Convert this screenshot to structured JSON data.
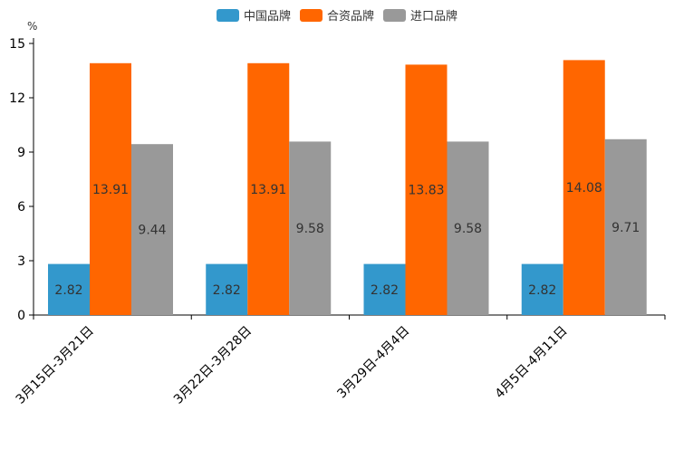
{
  "chart_data": {
    "type": "bar",
    "title": "",
    "unit_label": "%",
    "xlabel": "",
    "ylabel": "%",
    "ylim": [
      0,
      15
    ],
    "yticks": [
      0,
      3,
      6,
      9,
      12,
      15
    ],
    "grid": false,
    "legend_position": "top-center",
    "categories": [
      "3月15日-3月21日",
      "3月22日-3月28日",
      "3月29日-4月4日",
      "4月5日-4月11日"
    ],
    "series": [
      {
        "name": "中国品牌",
        "color": "#3398cc",
        "values": [
          2.82,
          2.82,
          2.82,
          2.82
        ]
      },
      {
        "name": "合资品牌",
        "color": "#ff6600",
        "values": [
          13.91,
          13.91,
          13.83,
          14.08
        ]
      },
      {
        "name": "进口品牌",
        "color": "#999999",
        "values": [
          9.44,
          9.58,
          9.58,
          9.71
        ]
      }
    ]
  }
}
